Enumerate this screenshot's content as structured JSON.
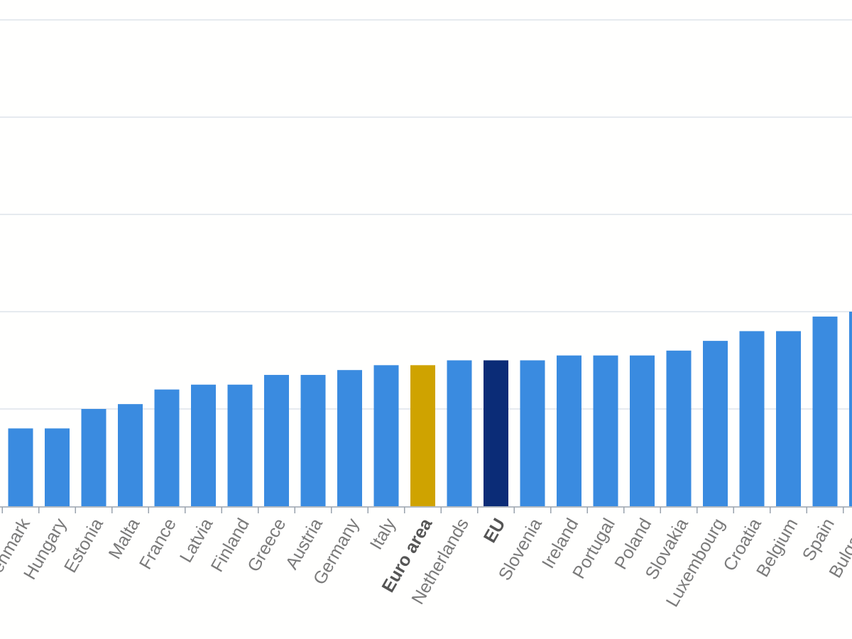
{
  "chart_data": {
    "type": "bar",
    "categories": [
      "Denmark",
      "Hungary",
      "Estonia",
      "Malta",
      "France",
      "Latvia",
      "Finland",
      "Greece",
      "Austria",
      "Germany",
      "Italy",
      "Euro area",
      "Netherlands",
      "EU",
      "Slovenia",
      "Ireland",
      "Portugal",
      "Poland",
      "Slovakia",
      "Luxembourg",
      "Croatia",
      "Belgium",
      "Spain",
      "Bulgaria"
    ],
    "values": [
      0.8,
      0.8,
      1.0,
      1.05,
      1.2,
      1.25,
      1.25,
      1.35,
      1.35,
      1.4,
      1.45,
      1.45,
      1.5,
      1.5,
      1.5,
      1.55,
      1.55,
      1.55,
      1.6,
      1.7,
      1.8,
      1.8,
      1.95,
      2.0
    ],
    "highlight": {
      "Euro area": "#cfa300",
      "EU": "#0b2c77"
    },
    "bold_categories": [
      "Euro area",
      "EU"
    ],
    "bar_color": "#3a8be0",
    "ylim": [
      0,
      5
    ],
    "yticks": [
      0,
      1,
      2,
      3,
      4,
      5
    ],
    "grid": true,
    "xlabel": "",
    "ylabel": "",
    "title": ""
  }
}
